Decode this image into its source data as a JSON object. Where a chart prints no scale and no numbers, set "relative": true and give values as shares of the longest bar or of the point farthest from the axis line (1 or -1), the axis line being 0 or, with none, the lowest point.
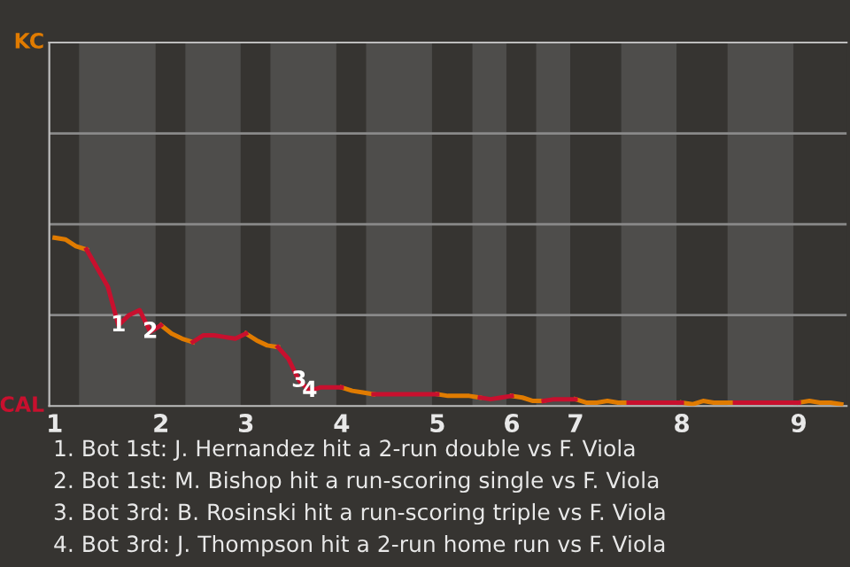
{
  "chart_data": {
    "type": "line",
    "relative": true,
    "tick_labels": "x",
    "categories": [
      "1",
      null,
      null,
      null,
      null,
      null,
      null,
      null,
      null,
      null,
      "2",
      null,
      null,
      null,
      null,
      null,
      null,
      null,
      "3",
      null,
      null,
      null,
      null,
      null,
      null,
      null,
      null,
      "4",
      null,
      null,
      null,
      null,
      null,
      null,
      null,
      null,
      "5",
      null,
      null,
      null,
      null,
      null,
      null,
      "6",
      null,
      null,
      null,
      null,
      null,
      "7",
      null,
      null,
      null,
      null,
      null,
      null,
      null,
      null,
      null,
      "8",
      null,
      null,
      null,
      null,
      null,
      null,
      null,
      null,
      null,
      null,
      "9",
      null,
      null,
      null,
      null
    ],
    "marker": "none",
    "line_style": "solid",
    "ref_lines": [
      {
        "axis": "y",
        "value": 0.54,
        "color": "#8a8a8a"
      },
      {
        "axis": "y",
        "value": 1.08,
        "color": "#8a8a8a"
      },
      {
        "axis": "y",
        "value": 1.62,
        "color": "#8a8a8a"
      }
    ],
    "series": [
      {
        "name": "KC",
        "color": "#e07b00",
        "values": [
          1,
          0.99,
          0.95,
          0.93,
          null,
          null,
          null,
          null,
          null,
          null,
          0.48,
          0.43,
          0.4,
          0.38,
          null,
          null,
          null,
          null,
          0.43,
          0.39,
          0.36,
          0.35,
          null,
          null,
          null,
          null,
          null,
          0.11,
          0.09,
          0.08,
          0.07,
          null,
          null,
          null,
          null,
          null,
          0.07,
          0.06,
          0.06,
          0.06,
          0.05,
          null,
          null,
          0.06,
          0.05,
          0.03,
          0.03,
          null,
          null,
          0.04,
          0.02,
          0.02,
          0.03,
          0.02,
          0.02,
          null,
          null,
          null,
          null,
          0.02,
          0.01,
          0.03,
          0.02,
          0.02,
          0.02,
          null,
          null,
          null,
          null,
          null,
          0.02,
          0.03,
          0.02,
          0.02,
          0.01
        ]
      },
      {
        "name": "CAL",
        "color": "#c8102e",
        "values": [
          null,
          null,
          null,
          0.93,
          0.82,
          0.71,
          0.48,
          0.54,
          0.57,
          0.44,
          0.48,
          null,
          null,
          0.38,
          0.42,
          0.42,
          0.41,
          0.4,
          0.43,
          null,
          null,
          0.35,
          0.28,
          0.15,
          0.09,
          0.11,
          0.11,
          0.11,
          null,
          null,
          0.07,
          0.07,
          0.07,
          0.07,
          0.07,
          0.07,
          0.07,
          null,
          null,
          null,
          0.05,
          0.04,
          0.05,
          0.06,
          null,
          null,
          0.03,
          0.04,
          0.04,
          0.04,
          null,
          null,
          null,
          null,
          0.02,
          0.02,
          0.02,
          0.02,
          0.02,
          0.02,
          null,
          null,
          null,
          null,
          0.02,
          0.02,
          0.02,
          0.02,
          0.02,
          0.02,
          0.02,
          null,
          null,
          null,
          null
        ]
      }
    ],
    "annotations": [
      {
        "text": "1",
        "y": 0.48
      },
      {
        "text": "2",
        "y": 0.44
      },
      {
        "text": "3",
        "y": 0.15
      },
      {
        "text": "4",
        "y": 0.09
      },
      "1. Bot 1st: J. Hernandez hit a 2-run double vs F. Viola",
      "2. Bot 1st: M. Bishop hit a run-scoring single vs F. Viola",
      "3. Bot 3rd: B. Rosinski hit a run-scoring triple vs F. Viola",
      "4. Bot 3rd: J. Thompson hit a 2-run home run vs F. Viola"
    ]
  }
}
